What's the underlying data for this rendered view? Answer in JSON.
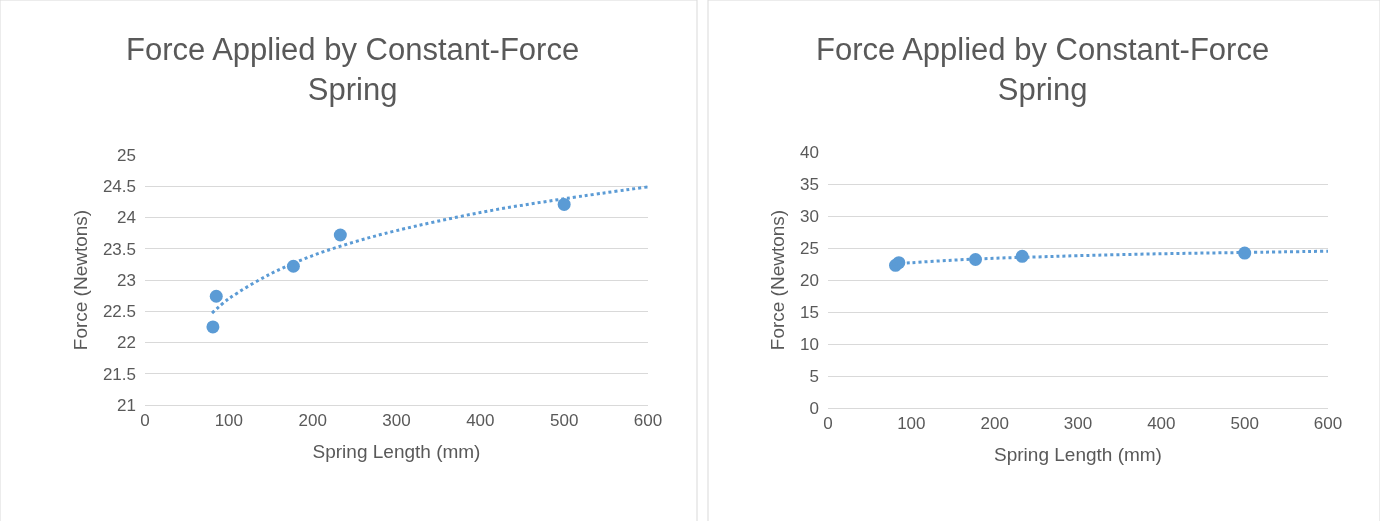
{
  "chart_data": [
    {
      "type": "scatter",
      "title": "Force Applied by Constant-Force Spring",
      "xlabel": "Spring Length (mm)",
      "ylabel": "Force (Newtons)",
      "xlim": [
        0,
        600
      ],
      "xticks": [
        0,
        100,
        200,
        300,
        400,
        500,
        600
      ],
      "ylim": [
        21,
        25
      ],
      "yticks": [
        21,
        21.5,
        22,
        22.5,
        23,
        23.5,
        24,
        24.5,
        25
      ],
      "grid": "y",
      "series": [
        {
          "color": "#5b9bd5",
          "marker": "circle",
          "x": [
            81,
            85,
            177,
            233,
            500
          ],
          "values": [
            22.25,
            22.74,
            23.22,
            23.72,
            24.21
          ]
        },
        {
          "type": "line",
          "color": "#5b9bd5",
          "marker": "none",
          "line_style": "dotted",
          "x": [
            80,
            100,
            150,
            200,
            250,
            300,
            400,
            500,
            600
          ],
          "values": [
            22.47,
            22.7,
            23.1,
            23.39,
            23.61,
            23.79,
            24.08,
            24.3,
            24.49
          ]
        }
      ]
    },
    {
      "type": "scatter",
      "title": "Force Applied by Constant-Force Spring",
      "xlabel": "Spring Length (mm)",
      "ylabel": "Force (Newtons)",
      "xlim": [
        0,
        600
      ],
      "xticks": [
        0,
        100,
        200,
        300,
        400,
        500,
        600
      ],
      "ylim": [
        0,
        40
      ],
      "yticks": [
        0,
        5,
        10,
        15,
        20,
        25,
        30,
        35,
        40
      ],
      "grid": "y",
      "series": [
        {
          "color": "#5b9bd5",
          "marker": "circle",
          "x": [
            81,
            85,
            177,
            233,
            500
          ],
          "values": [
            22.3,
            22.7,
            23.2,
            23.7,
            24.2
          ]
        },
        {
          "type": "line",
          "color": "#5b9bd5",
          "marker": "none",
          "line_style": "dotted",
          "x": [
            80,
            100,
            150,
            200,
            250,
            300,
            400,
            500,
            600
          ],
          "values": [
            22.5,
            22.7,
            23.1,
            23.4,
            23.6,
            23.8,
            24.1,
            24.3,
            24.5
          ]
        }
      ]
    }
  ]
}
